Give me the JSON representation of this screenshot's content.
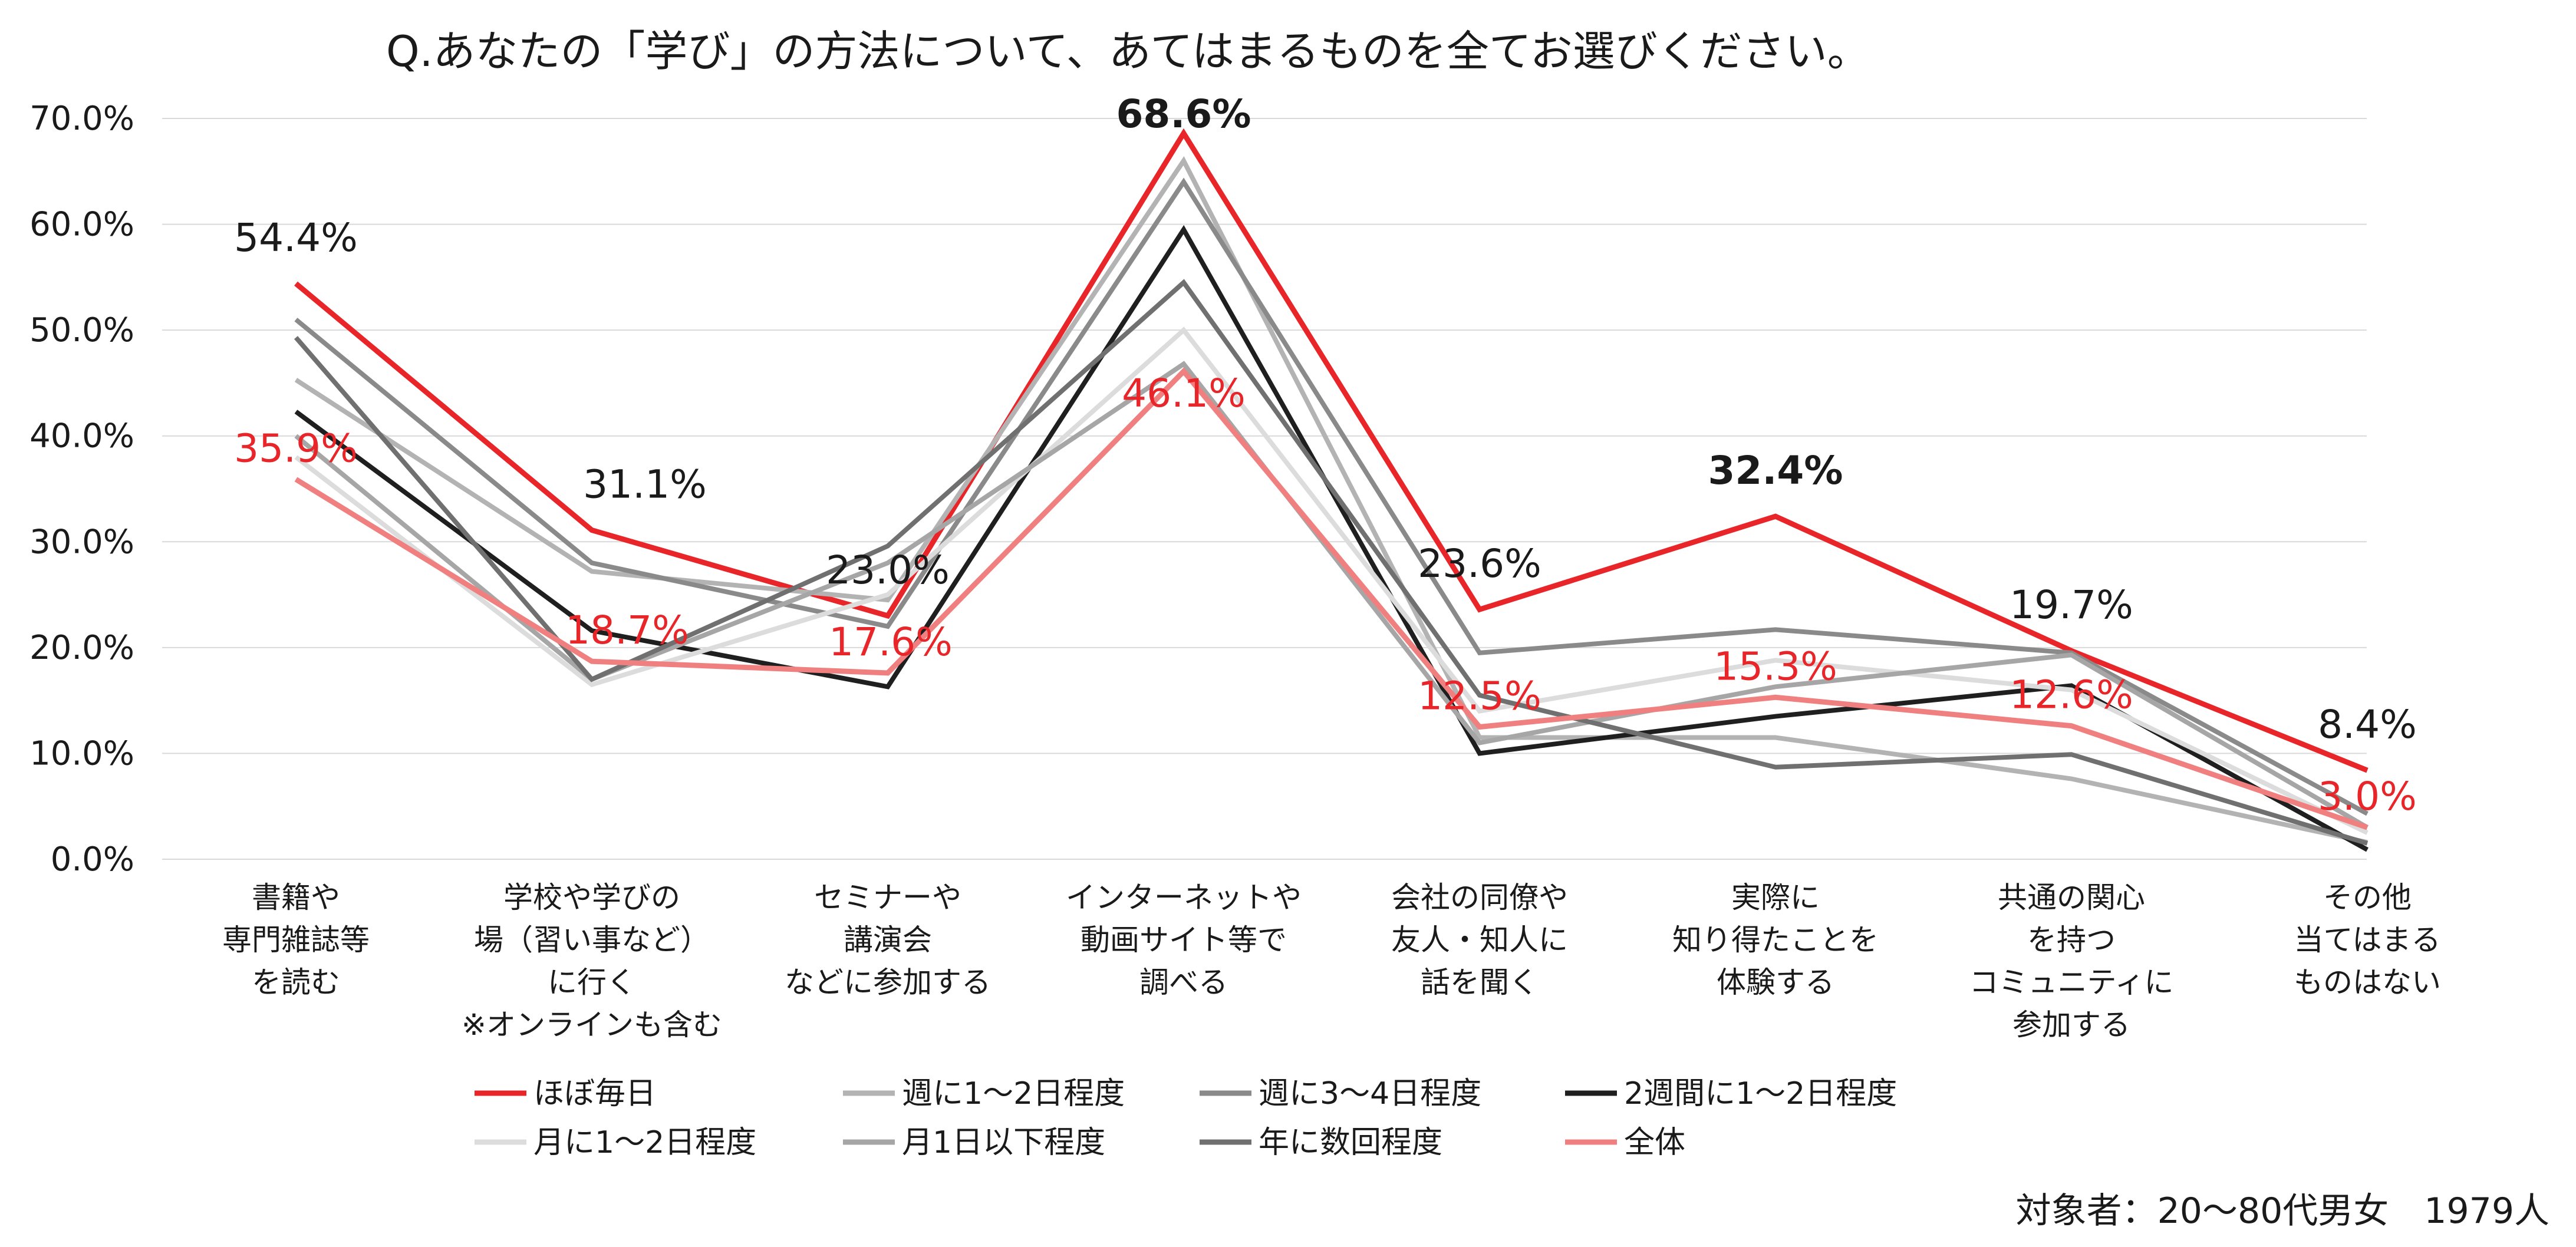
{
  "chart_data": {
    "type": "line",
    "title": "Q.あなたの「学び」の方法について、あてはまるものを全てお選びください。",
    "ylim": [
      0,
      70
    ],
    "ytick_labels": [
      "0.0%",
      "10.0%",
      "20.0%",
      "30.0%",
      "40.0%",
      "50.0%",
      "60.0%",
      "70.0%"
    ],
    "grid": true,
    "legend_position": "bottom",
    "categories": [
      [
        "書籍や",
        "専門雑誌等",
        "を読む"
      ],
      [
        "学校や学びの",
        "場（習い事など）",
        "に行く",
        "※オンラインも含む"
      ],
      [
        "セミナーや",
        "講演会",
        "などに参加する"
      ],
      [
        "インターネットや",
        "動画サイト等で",
        "調べる"
      ],
      [
        "会社の同僚や",
        "友人・知人に",
        "話を聞く"
      ],
      [
        "実際に",
        "知り得たことを",
        "体験する"
      ],
      [
        "共通の関心",
        "を持つ",
        "コミュニティに",
        "参加する"
      ],
      [
        "その他",
        "当てはまる",
        "ものはない"
      ]
    ],
    "series": [
      {
        "name": "ほぼ毎日",
        "color": "#e8262a",
        "values": [
          54.4,
          31.1,
          23.0,
          68.6,
          23.6,
          32.4,
          19.7,
          8.4
        ]
      },
      {
        "name": "週に1～2日程度",
        "color": "#b3b3b3",
        "values": [
          45.3,
          27.2,
          24.5,
          66.0,
          11.5,
          11.5,
          7.6,
          1.6
        ]
      },
      {
        "name": "週に3～4日程度",
        "color": "#8a8a8a",
        "values": [
          51.0,
          28.0,
          22.0,
          64.0,
          19.5,
          21.7,
          19.5,
          4.3
        ]
      },
      {
        "name": "2週間に1～2日程度",
        "color": "#1f1f1f",
        "values": [
          42.3,
          21.6,
          16.3,
          59.5,
          10.0,
          13.5,
          16.4,
          0.9
        ]
      },
      {
        "name": "月に1～2日程度",
        "color": "#dcdcdc",
        "values": [
          38.0,
          16.5,
          25.0,
          50.0,
          14.0,
          18.8,
          16.0,
          2.5
        ]
      },
      {
        "name": "月1日以下程度",
        "color": "#a6a6a6",
        "values": [
          40.0,
          17.0,
          28.0,
          46.8,
          11.0,
          16.3,
          19.3,
          3.0
        ]
      },
      {
        "name": "年に数回程度",
        "color": "#707070",
        "values": [
          49.3,
          17.0,
          29.6,
          54.5,
          15.5,
          8.7,
          9.9,
          1.5
        ]
      },
      {
        "name": "全体",
        "color": "#f08080",
        "values": [
          35.9,
          18.7,
          17.6,
          46.1,
          12.5,
          15.3,
          12.6,
          3.0
        ]
      }
    ],
    "data_labels": {
      "ほぼ毎日": [
        "54.4%",
        "31.1%",
        "23.0%",
        "68.6%",
        "23.6%",
        "32.4%",
        "19.7%",
        "8.4%"
      ],
      "全体": [
        "35.9%",
        "18.7%",
        "17.6%",
        "46.1%",
        "12.5%",
        "15.3%",
        "12.6%",
        "3.0%"
      ]
    },
    "note": "対象者：20～80代男女　1979人"
  }
}
